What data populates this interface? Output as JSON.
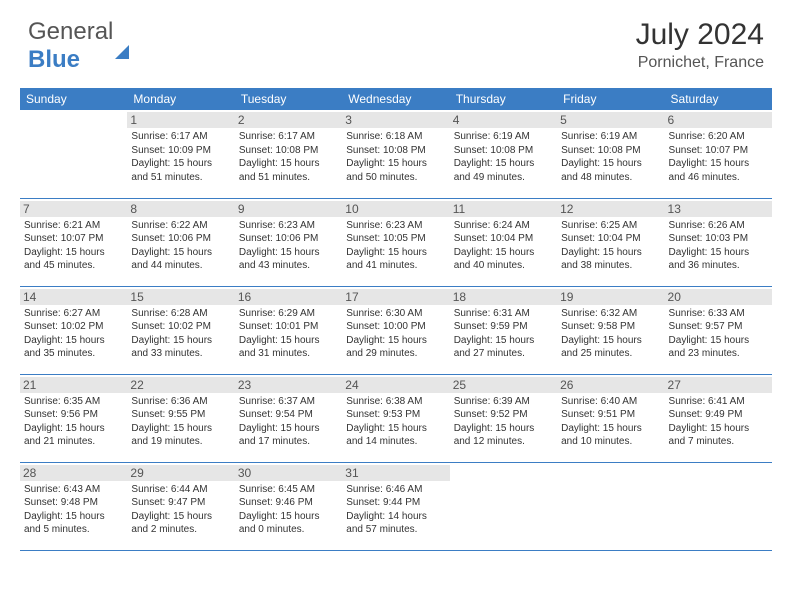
{
  "brand": {
    "part1": "General",
    "part2": "Blue"
  },
  "title": "July 2024",
  "location": "Pornichet, France",
  "header_bg": "#3b7dc4",
  "daynum_bg": "#e6e6e6",
  "weekdays": [
    "Sunday",
    "Monday",
    "Tuesday",
    "Wednesday",
    "Thursday",
    "Friday",
    "Saturday"
  ],
  "weeks": [
    [
      {
        "n": "",
        "sr": "",
        "ss": "",
        "dl": ""
      },
      {
        "n": "1",
        "sr": "Sunrise: 6:17 AM",
        "ss": "Sunset: 10:09 PM",
        "dl": "Daylight: 15 hours and 51 minutes."
      },
      {
        "n": "2",
        "sr": "Sunrise: 6:17 AM",
        "ss": "Sunset: 10:08 PM",
        "dl": "Daylight: 15 hours and 51 minutes."
      },
      {
        "n": "3",
        "sr": "Sunrise: 6:18 AM",
        "ss": "Sunset: 10:08 PM",
        "dl": "Daylight: 15 hours and 50 minutes."
      },
      {
        "n": "4",
        "sr": "Sunrise: 6:19 AM",
        "ss": "Sunset: 10:08 PM",
        "dl": "Daylight: 15 hours and 49 minutes."
      },
      {
        "n": "5",
        "sr": "Sunrise: 6:19 AM",
        "ss": "Sunset: 10:08 PM",
        "dl": "Daylight: 15 hours and 48 minutes."
      },
      {
        "n": "6",
        "sr": "Sunrise: 6:20 AM",
        "ss": "Sunset: 10:07 PM",
        "dl": "Daylight: 15 hours and 46 minutes."
      }
    ],
    [
      {
        "n": "7",
        "sr": "Sunrise: 6:21 AM",
        "ss": "Sunset: 10:07 PM",
        "dl": "Daylight: 15 hours and 45 minutes."
      },
      {
        "n": "8",
        "sr": "Sunrise: 6:22 AM",
        "ss": "Sunset: 10:06 PM",
        "dl": "Daylight: 15 hours and 44 minutes."
      },
      {
        "n": "9",
        "sr": "Sunrise: 6:23 AM",
        "ss": "Sunset: 10:06 PM",
        "dl": "Daylight: 15 hours and 43 minutes."
      },
      {
        "n": "10",
        "sr": "Sunrise: 6:23 AM",
        "ss": "Sunset: 10:05 PM",
        "dl": "Daylight: 15 hours and 41 minutes."
      },
      {
        "n": "11",
        "sr": "Sunrise: 6:24 AM",
        "ss": "Sunset: 10:04 PM",
        "dl": "Daylight: 15 hours and 40 minutes."
      },
      {
        "n": "12",
        "sr": "Sunrise: 6:25 AM",
        "ss": "Sunset: 10:04 PM",
        "dl": "Daylight: 15 hours and 38 minutes."
      },
      {
        "n": "13",
        "sr": "Sunrise: 6:26 AM",
        "ss": "Sunset: 10:03 PM",
        "dl": "Daylight: 15 hours and 36 minutes."
      }
    ],
    [
      {
        "n": "14",
        "sr": "Sunrise: 6:27 AM",
        "ss": "Sunset: 10:02 PM",
        "dl": "Daylight: 15 hours and 35 minutes."
      },
      {
        "n": "15",
        "sr": "Sunrise: 6:28 AM",
        "ss": "Sunset: 10:02 PM",
        "dl": "Daylight: 15 hours and 33 minutes."
      },
      {
        "n": "16",
        "sr": "Sunrise: 6:29 AM",
        "ss": "Sunset: 10:01 PM",
        "dl": "Daylight: 15 hours and 31 minutes."
      },
      {
        "n": "17",
        "sr": "Sunrise: 6:30 AM",
        "ss": "Sunset: 10:00 PM",
        "dl": "Daylight: 15 hours and 29 minutes."
      },
      {
        "n": "18",
        "sr": "Sunrise: 6:31 AM",
        "ss": "Sunset: 9:59 PM",
        "dl": "Daylight: 15 hours and 27 minutes."
      },
      {
        "n": "19",
        "sr": "Sunrise: 6:32 AM",
        "ss": "Sunset: 9:58 PM",
        "dl": "Daylight: 15 hours and 25 minutes."
      },
      {
        "n": "20",
        "sr": "Sunrise: 6:33 AM",
        "ss": "Sunset: 9:57 PM",
        "dl": "Daylight: 15 hours and 23 minutes."
      }
    ],
    [
      {
        "n": "21",
        "sr": "Sunrise: 6:35 AM",
        "ss": "Sunset: 9:56 PM",
        "dl": "Daylight: 15 hours and 21 minutes."
      },
      {
        "n": "22",
        "sr": "Sunrise: 6:36 AM",
        "ss": "Sunset: 9:55 PM",
        "dl": "Daylight: 15 hours and 19 minutes."
      },
      {
        "n": "23",
        "sr": "Sunrise: 6:37 AM",
        "ss": "Sunset: 9:54 PM",
        "dl": "Daylight: 15 hours and 17 minutes."
      },
      {
        "n": "24",
        "sr": "Sunrise: 6:38 AM",
        "ss": "Sunset: 9:53 PM",
        "dl": "Daylight: 15 hours and 14 minutes."
      },
      {
        "n": "25",
        "sr": "Sunrise: 6:39 AM",
        "ss": "Sunset: 9:52 PM",
        "dl": "Daylight: 15 hours and 12 minutes."
      },
      {
        "n": "26",
        "sr": "Sunrise: 6:40 AM",
        "ss": "Sunset: 9:51 PM",
        "dl": "Daylight: 15 hours and 10 minutes."
      },
      {
        "n": "27",
        "sr": "Sunrise: 6:41 AM",
        "ss": "Sunset: 9:49 PM",
        "dl": "Daylight: 15 hours and 7 minutes."
      }
    ],
    [
      {
        "n": "28",
        "sr": "Sunrise: 6:43 AM",
        "ss": "Sunset: 9:48 PM",
        "dl": "Daylight: 15 hours and 5 minutes."
      },
      {
        "n": "29",
        "sr": "Sunrise: 6:44 AM",
        "ss": "Sunset: 9:47 PM",
        "dl": "Daylight: 15 hours and 2 minutes."
      },
      {
        "n": "30",
        "sr": "Sunrise: 6:45 AM",
        "ss": "Sunset: 9:46 PM",
        "dl": "Daylight: 15 hours and 0 minutes."
      },
      {
        "n": "31",
        "sr": "Sunrise: 6:46 AM",
        "ss": "Sunset: 9:44 PM",
        "dl": "Daylight: 14 hours and 57 minutes."
      },
      {
        "n": "",
        "sr": "",
        "ss": "",
        "dl": ""
      },
      {
        "n": "",
        "sr": "",
        "ss": "",
        "dl": ""
      },
      {
        "n": "",
        "sr": "",
        "ss": "",
        "dl": ""
      }
    ]
  ]
}
